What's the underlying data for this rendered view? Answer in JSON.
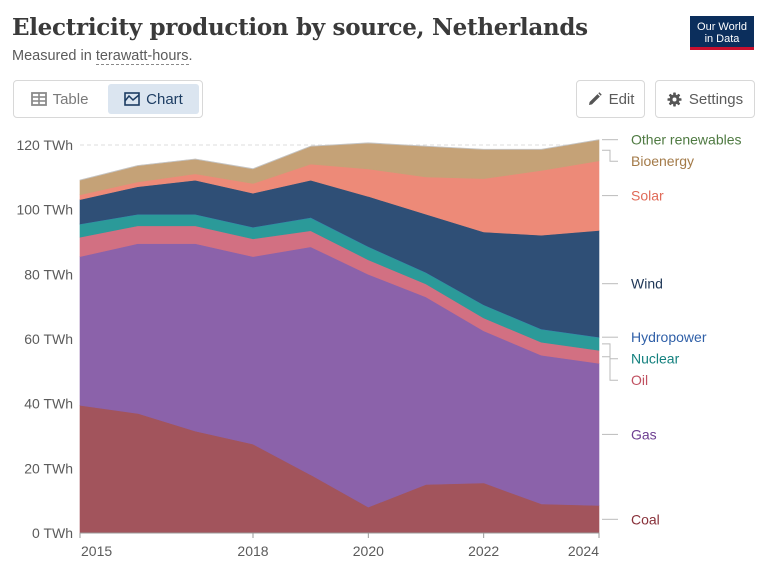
{
  "header": {
    "title": "Electricity production by source, Netherlands",
    "subtitle_prefix": "Measured in ",
    "subtitle_term": "terawatt-hours",
    "subtitle_suffix": "."
  },
  "logo": {
    "line1": "Our World",
    "line2": "in Data"
  },
  "tabs": [
    {
      "label": "Table",
      "icon": "table-icon",
      "active": false
    },
    {
      "label": "Chart",
      "icon": "chart-icon",
      "active": true
    }
  ],
  "actions": {
    "edit_label": "Edit",
    "settings_label": "Settings"
  },
  "chart_data": {
    "type": "area",
    "stacked": true,
    "title": "Electricity production by source, Netherlands",
    "ylabel": "TWh",
    "x": [
      2015,
      2016,
      2017,
      2018,
      2019,
      2020,
      2021,
      2022,
      2023,
      2024
    ],
    "xlim": [
      2015,
      2024
    ],
    "x_ticks": [
      "2015",
      "2018",
      "2020",
      "2022",
      "2024"
    ],
    "ylim": [
      0,
      125
    ],
    "y_ticks": [
      "0 TWh",
      "20 TWh",
      "40 TWh",
      "60 TWh",
      "80 TWh",
      "100 TWh",
      "120 TWh"
    ],
    "y_tick_values": [
      0,
      20,
      40,
      60,
      80,
      100,
      120
    ],
    "grid": true,
    "series": [
      {
        "name": "Coal",
        "color": "#a2545c",
        "label_color": "#883039",
        "values": [
          39.5,
          37,
          31.5,
          27.5,
          18,
          8,
          15,
          15.5,
          9,
          8.5
        ]
      },
      {
        "name": "Gas",
        "color": "#8b62aa",
        "label_color": "#6d3e91",
        "values": [
          46,
          52.5,
          58,
          58,
          70.5,
          72,
          58,
          47,
          46,
          44
        ]
      },
      {
        "name": "Oil",
        "color": "#d27082",
        "label_color": "#c05060",
        "values": [
          6,
          5.5,
          5.5,
          5.5,
          5,
          4.5,
          4,
          4,
          4,
          4
        ]
      },
      {
        "name": "Nuclear",
        "color": "#2b9a99",
        "label_color": "#13807e",
        "values": [
          4,
          3.5,
          3.5,
          3.5,
          4,
          4,
          3.5,
          4,
          4,
          4
        ]
      },
      {
        "name": "Hydropower",
        "color": "#3c7cb5",
        "label_color": "#3060a8",
        "values": [
          0.1,
          0.1,
          0.1,
          0.1,
          0.1,
          0.1,
          0.1,
          0.1,
          0.1,
          0.1
        ]
      },
      {
        "name": "Wind",
        "color": "#2f4f76",
        "label_color": "#1e3656",
        "values": [
          7.5,
          8.5,
          10.5,
          10.5,
          11.5,
          15.5,
          18,
          22.5,
          29,
          33
        ]
      },
      {
        "name": "Solar",
        "color": "#ed8a78",
        "label_color": "#e06a58",
        "values": [
          1.5,
          1.5,
          2,
          3,
          5,
          8.5,
          11.5,
          16.5,
          20,
          21.5
        ]
      },
      {
        "name": "Bioenergy",
        "color": "#c5a277",
        "label_color": "#a37a48",
        "values": [
          4.5,
          5,
          4.5,
          4.5,
          5.5,
          8,
          9.5,
          9,
          6.5,
          6.5
        ]
      },
      {
        "name": "Other renewables",
        "color": "#c5c5c5",
        "label_color": "#4f7a42",
        "values": [
          0.1,
          0.1,
          0.1,
          0.1,
          0.1,
          0.1,
          0.1,
          0.1,
          0.1,
          0.1
        ]
      }
    ],
    "legend_position": "right"
  }
}
